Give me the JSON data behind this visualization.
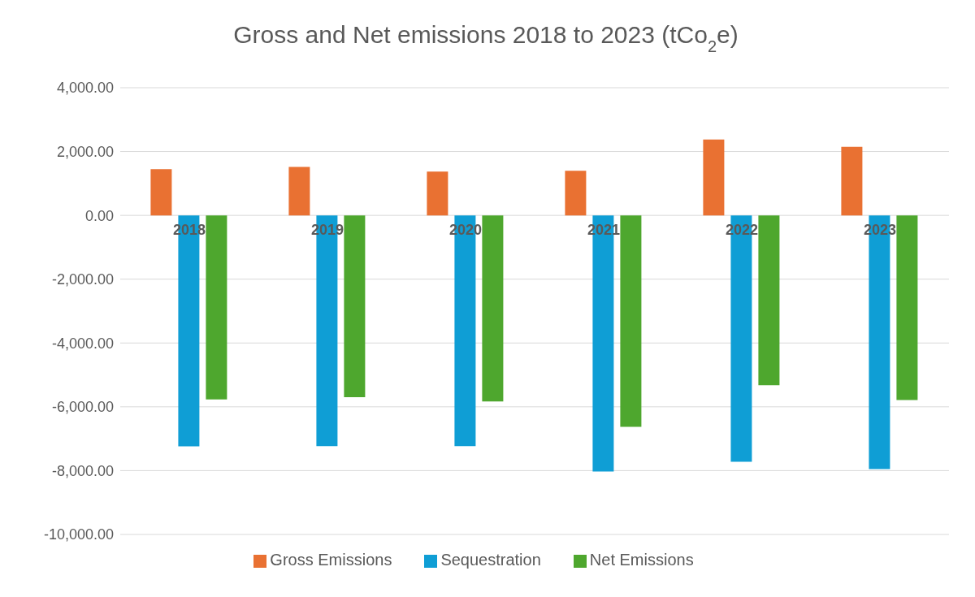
{
  "chart_data": {
    "type": "bar",
    "title": "Gross and Net emissions 2018 to 2023 (tCo$_{2}$e)",
    "categories": [
      "2018",
      "2019",
      "2020",
      "2021",
      "2022",
      "2023"
    ],
    "series": [
      {
        "name": "Gross Emissions",
        "color": "#e97132",
        "values": [
          1450,
          1520,
          1370,
          1400,
          2380,
          2150
        ]
      },
      {
        "name": "Sequestration",
        "color": "#0f9ed5",
        "values": [
          -7240,
          -7230,
          -7230,
          -8030,
          -7720,
          -7950
        ]
      },
      {
        "name": "Net Emissions",
        "color": "#4ea72e",
        "values": [
          -5770,
          -5700,
          -5830,
          -6630,
          -5320,
          -5790
        ]
      }
    ],
    "ylim": [
      -10000,
      4000
    ],
    "yticks": [
      {
        "value": -10000,
        "label": "-10,000.00"
      },
      {
        "value": -8000,
        "label": "-8,000.00"
      },
      {
        "value": -6000,
        "label": "-6,000.00"
      },
      {
        "value": -4000,
        "label": "-4,000.00"
      },
      {
        "value": -2000,
        "label": "-2,000.00"
      },
      {
        "value": 0,
        "label": "0.00"
      },
      {
        "value": 2000,
        "label": "2,000.00"
      },
      {
        "value": 4000,
        "label": "4,000.00"
      }
    ],
    "grid": "y",
    "legend": "bottom"
  }
}
